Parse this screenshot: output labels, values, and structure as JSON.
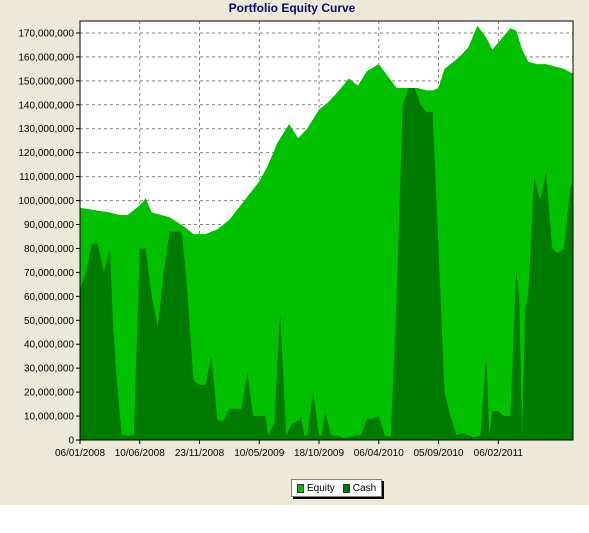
{
  "chart_data": {
    "type": "area",
    "title": "Portfolio Equity Curve",
    "xlabel": "",
    "ylabel": "",
    "x_tick_labels": [
      "06/01/2008",
      "10/06/2008",
      "23/11/2008",
      "10/05/2009",
      "18/10/2009",
      "06/04/2010",
      "05/09/2010",
      "06/02/2011"
    ],
    "y_tick_labels": [
      "0",
      "10,000,000",
      "20,000,000",
      "30,000,000",
      "40,000,000",
      "50,000,000",
      "60,000,000",
      "70,000,000",
      "80,000,000",
      "90,000,000",
      "100,000,000",
      "110,000,000",
      "120,000,000",
      "130,000,000",
      "140,000,000",
      "150,000,000",
      "160,000,000",
      "170,000,000"
    ],
    "ylim": [
      0,
      175000000
    ],
    "xlim": [
      0,
      16.5
    ],
    "grid": true,
    "legend_position": "bottom-center",
    "series": [
      {
        "name": "Equity",
        "color": "#00c000",
        "x": [
          0,
          1,
          1.3,
          1.6,
          2.0,
          2.2,
          2.4,
          2.7,
          3.0,
          3.5,
          3.8,
          4.2,
          4.6,
          5.0,
          5.5,
          6.0,
          6.3,
          6.6,
          7.0,
          7.3,
          7.6,
          8.0,
          8.3,
          8.6,
          9.0,
          9.3,
          9.6,
          10.0,
          10.3,
          10.6,
          11.0,
          11.3,
          11.6,
          11.8,
          12.0,
          12.2,
          12.5,
          12.7,
          13.0,
          13.3,
          13.6,
          13.8,
          14.0,
          14.2,
          14.4,
          14.6,
          14.8,
          15.0,
          15.3,
          15.6,
          15.9,
          16.2,
          16.5
        ],
        "values": [
          97000000,
          95000000,
          94000000,
          94000000,
          98000000,
          101000000,
          95000000,
          94000000,
          93000000,
          89000000,
          86000000,
          86000000,
          88000000,
          92000000,
          100000000,
          108000000,
          115000000,
          124000000,
          132000000,
          126000000,
          130000000,
          138000000,
          141000000,
          145000000,
          151000000,
          148000000,
          154000000,
          157000000,
          152000000,
          147000000,
          147000000,
          147000000,
          146000000,
          146000000,
          147000000,
          155000000,
          158000000,
          160000000,
          164000000,
          173000000,
          168000000,
          163000000,
          166000000,
          169000000,
          172000000,
          171000000,
          163000000,
          158000000,
          157000000,
          157000000,
          156000000,
          155000000,
          153000000
        ]
      },
      {
        "name": "Cash",
        "color": "#007a00",
        "x": [
          0,
          0.2,
          0.4,
          0.6,
          0.8,
          1.0,
          1.1,
          1.2,
          1.3,
          1.4,
          1.6,
          1.8,
          2.0,
          2.2,
          2.4,
          2.6,
          2.8,
          3.0,
          3.1,
          3.2,
          3.3,
          3.4,
          3.5,
          3.6,
          3.8,
          4.0,
          4.2,
          4.4,
          4.6,
          4.7,
          4.8,
          5.0,
          5.2,
          5.4,
          5.6,
          5.8,
          6.0,
          6.1,
          6.2,
          6.3,
          6.5,
          6.7,
          6.9,
          7.1,
          7.3,
          7.4,
          7.5,
          7.6,
          7.8,
          8.0,
          8.1,
          8.2,
          8.4,
          8.6,
          8.8,
          9.0,
          9.2,
          9.4,
          9.6,
          9.8,
          10.0,
          10.2,
          10.4,
          10.6,
          10.8,
          11.0,
          11.2,
          11.4,
          11.6,
          11.8,
          12.0,
          12.2,
          12.4,
          12.6,
          12.8,
          13.0,
          13.2,
          13.4,
          13.6,
          13.7,
          13.8,
          14.0,
          14.2,
          14.4,
          14.6,
          14.7,
          14.8,
          14.9,
          15.0,
          15.2,
          15.4,
          15.6,
          15.8,
          16.0,
          16.2,
          16.4,
          16.5
        ],
        "values": [
          63000000,
          70000000,
          82000000,
          82000000,
          70000000,
          80000000,
          50000000,
          30000000,
          15000000,
          2000000,
          2000000,
          2000000,
          80000000,
          80000000,
          60000000,
          47000000,
          70000000,
          87000000,
          87000000,
          87000000,
          87000000,
          87000000,
          75000000,
          60000000,
          25000000,
          23000000,
          23000000,
          35000000,
          8000000,
          8000000,
          8000000,
          13000000,
          13000000,
          13000000,
          28000000,
          10000000,
          10000000,
          10000000,
          10000000,
          2000000,
          7000000,
          53000000,
          2000000,
          7000000,
          8000000,
          10000000,
          2000000,
          2000000,
          20000000,
          2000000,
          2000000,
          12000000,
          2000000,
          2000000,
          1000000,
          1000000,
          2000000,
          2000000,
          9000000,
          9000000,
          10000000,
          2000000,
          1000000,
          60000000,
          140000000,
          147000000,
          147000000,
          140000000,
          137000000,
          137000000,
          80000000,
          20000000,
          10000000,
          2000000,
          3000000,
          2000000,
          1000000,
          2000000,
          35000000,
          2000000,
          12000000,
          12000000,
          10000000,
          10000000,
          70000000,
          60000000,
          2000000,
          55000000,
          60000000,
          110000000,
          100000000,
          112000000,
          80000000,
          78000000,
          80000000,
          105000000,
          108000000
        ]
      }
    ]
  }
}
